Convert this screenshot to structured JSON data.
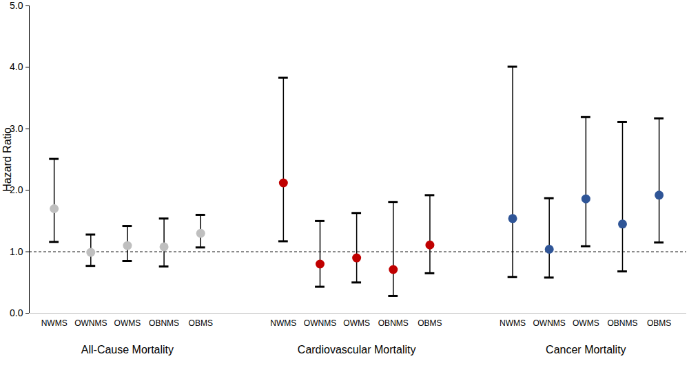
{
  "chart_data": {
    "type": "errorbar",
    "y_label": "Hazard Ratio",
    "ylim": [
      0,
      5
    ],
    "yticks": [
      0,
      1,
      2,
      3,
      4,
      5
    ],
    "reference_line": 1,
    "series": [
      {
        "name": "All-Cause Mortality",
        "color": "#bfbfbf",
        "categories": [
          "NWMS",
          "OWNMS",
          "OWMS",
          "OBNMS",
          "OBMS"
        ],
        "values": [
          1.7,
          0.99,
          1.1,
          1.08,
          1.3
        ],
        "lower": [
          1.16,
          0.77,
          0.85,
          0.76,
          1.07
        ],
        "upper": [
          2.51,
          1.28,
          1.42,
          1.54,
          1.6
        ]
      },
      {
        "name": "Cardiovascular Mortality",
        "color": "#c00000",
        "categories": [
          "NWMS",
          "OWNMS",
          "OWMS",
          "OBNMS",
          "OBMS"
        ],
        "values": [
          2.12,
          0.8,
          0.9,
          0.71,
          1.11
        ],
        "lower": [
          1.17,
          0.43,
          0.5,
          0.28,
          0.65
        ],
        "upper": [
          3.83,
          1.5,
          1.63,
          1.81,
          1.92
        ]
      },
      {
        "name": "Cancer Mortality",
        "color": "#2f5597",
        "categories": [
          "NWMS",
          "OWNMS",
          "OWMS",
          "OBNMS",
          "OBMS"
        ],
        "values": [
          1.54,
          1.04,
          1.86,
          1.45,
          1.92
        ],
        "lower": [
          0.59,
          0.58,
          1.09,
          0.68,
          1.15
        ],
        "upper": [
          4.01,
          1.87,
          3.19,
          3.11,
          3.17
        ]
      }
    ]
  }
}
